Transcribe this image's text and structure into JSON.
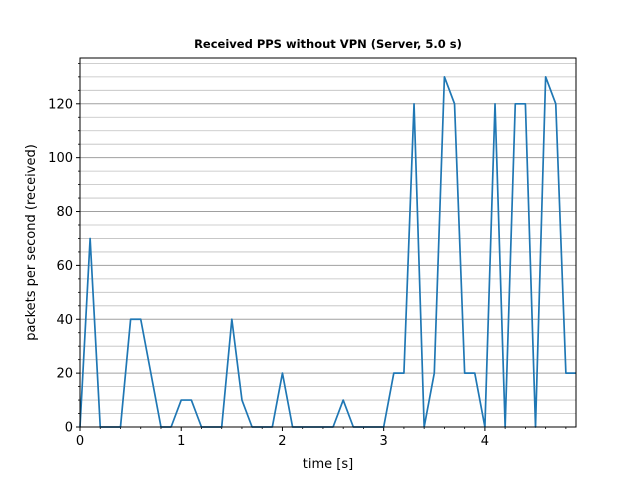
{
  "chart_data": {
    "type": "line",
    "title": "Received PPS without VPN (Server, 5.0 s)",
    "xlabel": "time [s]",
    "ylabel": "packets per second (received)",
    "xlim": [
      0,
      4.9
    ],
    "ylim": [
      0,
      137
    ],
    "x_ticks": [
      0,
      1,
      2,
      3,
      4
    ],
    "x_tick_labels": [
      "0",
      "1",
      "2",
      "3",
      "4"
    ],
    "y_ticks": [
      0,
      20,
      40,
      60,
      80,
      100,
      120
    ],
    "y_tick_labels": [
      "0",
      "20",
      "40",
      "60",
      "80",
      "100",
      "120"
    ],
    "y_minor_step": 5,
    "grid": "horizontal major and minor",
    "line_color": "#1f77b4",
    "series": [
      {
        "x": [
          0.0,
          0.1,
          0.2,
          0.3,
          0.4,
          0.5,
          0.6,
          0.7,
          0.8,
          0.9,
          1.0,
          1.1,
          1.2,
          1.3,
          1.4,
          1.5,
          1.6,
          1.7,
          1.8,
          1.9,
          2.0,
          2.1,
          2.2,
          2.3,
          2.4,
          2.5,
          2.6,
          2.7,
          2.8,
          2.9,
          3.0,
          3.1,
          3.2,
          3.3,
          3.4,
          3.5,
          3.6,
          3.7,
          3.8,
          3.9,
          4.0,
          4.1,
          4.2,
          4.3,
          4.4,
          4.5,
          4.6,
          4.7,
          4.8,
          4.9
        ],
        "values": [
          0,
          70,
          0,
          0,
          0,
          40,
          40,
          20,
          0,
          0,
          10,
          10,
          0,
          0,
          0,
          40,
          10,
          0,
          0,
          0,
          20,
          0,
          0,
          0,
          0,
          0,
          10,
          0,
          0,
          0,
          0,
          20,
          20,
          120,
          0,
          20,
          130,
          120,
          20,
          20,
          0,
          120,
          0,
          120,
          120,
          0,
          130,
          120,
          20,
          20
        ]
      }
    ]
  }
}
